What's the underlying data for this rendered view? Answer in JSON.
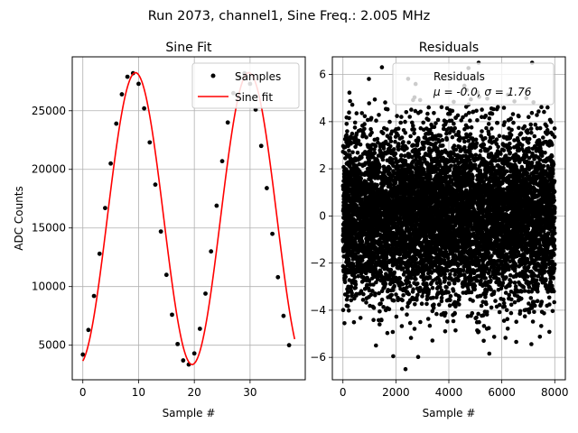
{
  "suptitle": "Run 2073, channel1, Sine Freq.: 2.005 MHz",
  "chart_data": [
    {
      "type": "scatter",
      "title": "Sine Fit",
      "xlabel": "Sample #",
      "ylabel": "ADC Counts",
      "xlim": [
        -1.9,
        39.9
      ],
      "ylim": [
        2050,
        29600
      ],
      "xticks": [
        0,
        10,
        20,
        30
      ],
      "yticks": [
        5000,
        10000,
        15000,
        20000,
        25000
      ],
      "grid": true,
      "legend_position": "top-right",
      "series": [
        {
          "name": "Samples",
          "kind": "points",
          "color": "#000000",
          "x": [
            0,
            1,
            2,
            3,
            4,
            5,
            6,
            7,
            8,
            9,
            10,
            11,
            12,
            13,
            14,
            15,
            16,
            17,
            18,
            19,
            20,
            21,
            22,
            23,
            24,
            25,
            26,
            27,
            28,
            29,
            30,
            31,
            32,
            33,
            34,
            35,
            36,
            37
          ],
          "y": [
            4200,
            6300,
            9200,
            12800,
            16700,
            20500,
            23900,
            26400,
            27900,
            28200,
            27300,
            25200,
            22300,
            18700,
            14700,
            11000,
            7600,
            5100,
            3700,
            3350,
            4300,
            6400,
            9400,
            13000,
            16900,
            20700,
            24000,
            26500,
            27900,
            28200,
            27300,
            25100,
            22000,
            18400,
            14500,
            10800,
            7500,
            5000
          ]
        },
        {
          "name": "Sine fit",
          "kind": "line",
          "color": "#ff0000",
          "model": "A*sin(2*pi*f*x + phi) + C",
          "amplitude": 12450,
          "offset": 15800,
          "frequency_cycles_per_sample": 0.0492,
          "phase_rad": -1.35,
          "x_range": [
            0,
            38
          ]
        }
      ]
    },
    {
      "type": "scatter",
      "title": "Residuals",
      "xlabel": "Sample #",
      "ylabel": "",
      "xlim": [
        -400,
        8400
      ],
      "ylim": [
        -6.95,
        6.75
      ],
      "xticks": [
        0,
        2000,
        4000,
        6000,
        8000
      ],
      "yticks": [
        -6,
        -4,
        -2,
        0,
        2,
        4,
        6
      ],
      "grid": true,
      "legend_position": "top-right",
      "series": [
        {
          "name": "Residuals",
          "legend_stats": "μ = -0.0, σ = 1.76",
          "kind": "points",
          "color": "#000000",
          "n_points": 8000,
          "mean": 0.0,
          "std": 1.76,
          "x_range": [
            0,
            8000
          ]
        }
      ]
    }
  ]
}
